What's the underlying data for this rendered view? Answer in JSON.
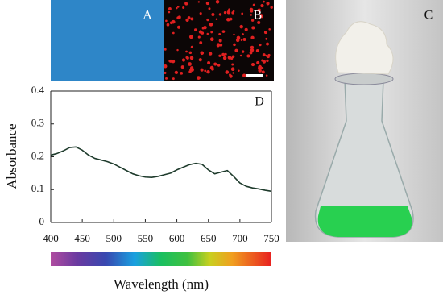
{
  "panel_labels": [
    "A",
    "B",
    "C"
  ],
  "chart_data": {
    "type": "line",
    "annotation": "D",
    "xlabel": "Wavelength (nm)",
    "ylabel": "Absorbance",
    "x": [
      400,
      410,
      420,
      430,
      440,
      450,
      460,
      470,
      480,
      490,
      500,
      510,
      520,
      530,
      540,
      550,
      560,
      570,
      580,
      590,
      600,
      610,
      620,
      630,
      640,
      650,
      660,
      670,
      680,
      690,
      700,
      710,
      720,
      730,
      740,
      750
    ],
    "values": [
      0.205,
      0.21,
      0.218,
      0.228,
      0.23,
      0.22,
      0.205,
      0.195,
      0.19,
      0.185,
      0.178,
      0.168,
      0.158,
      0.148,
      0.142,
      0.138,
      0.137,
      0.14,
      0.145,
      0.15,
      0.16,
      0.168,
      0.176,
      0.18,
      0.177,
      0.16,
      0.148,
      0.153,
      0.158,
      0.14,
      0.12,
      0.11,
      0.105,
      0.102,
      0.098,
      0.095
    ],
    "color": "#1e3b2c",
    "xlim": [
      400,
      750
    ],
    "xticks": [
      400,
      450,
      500,
      550,
      600,
      650,
      700,
      750
    ],
    "ylim": [
      0,
      0.4
    ],
    "yticks": [
      0,
      0.1,
      0.2,
      0.3,
      0.4
    ]
  }
}
